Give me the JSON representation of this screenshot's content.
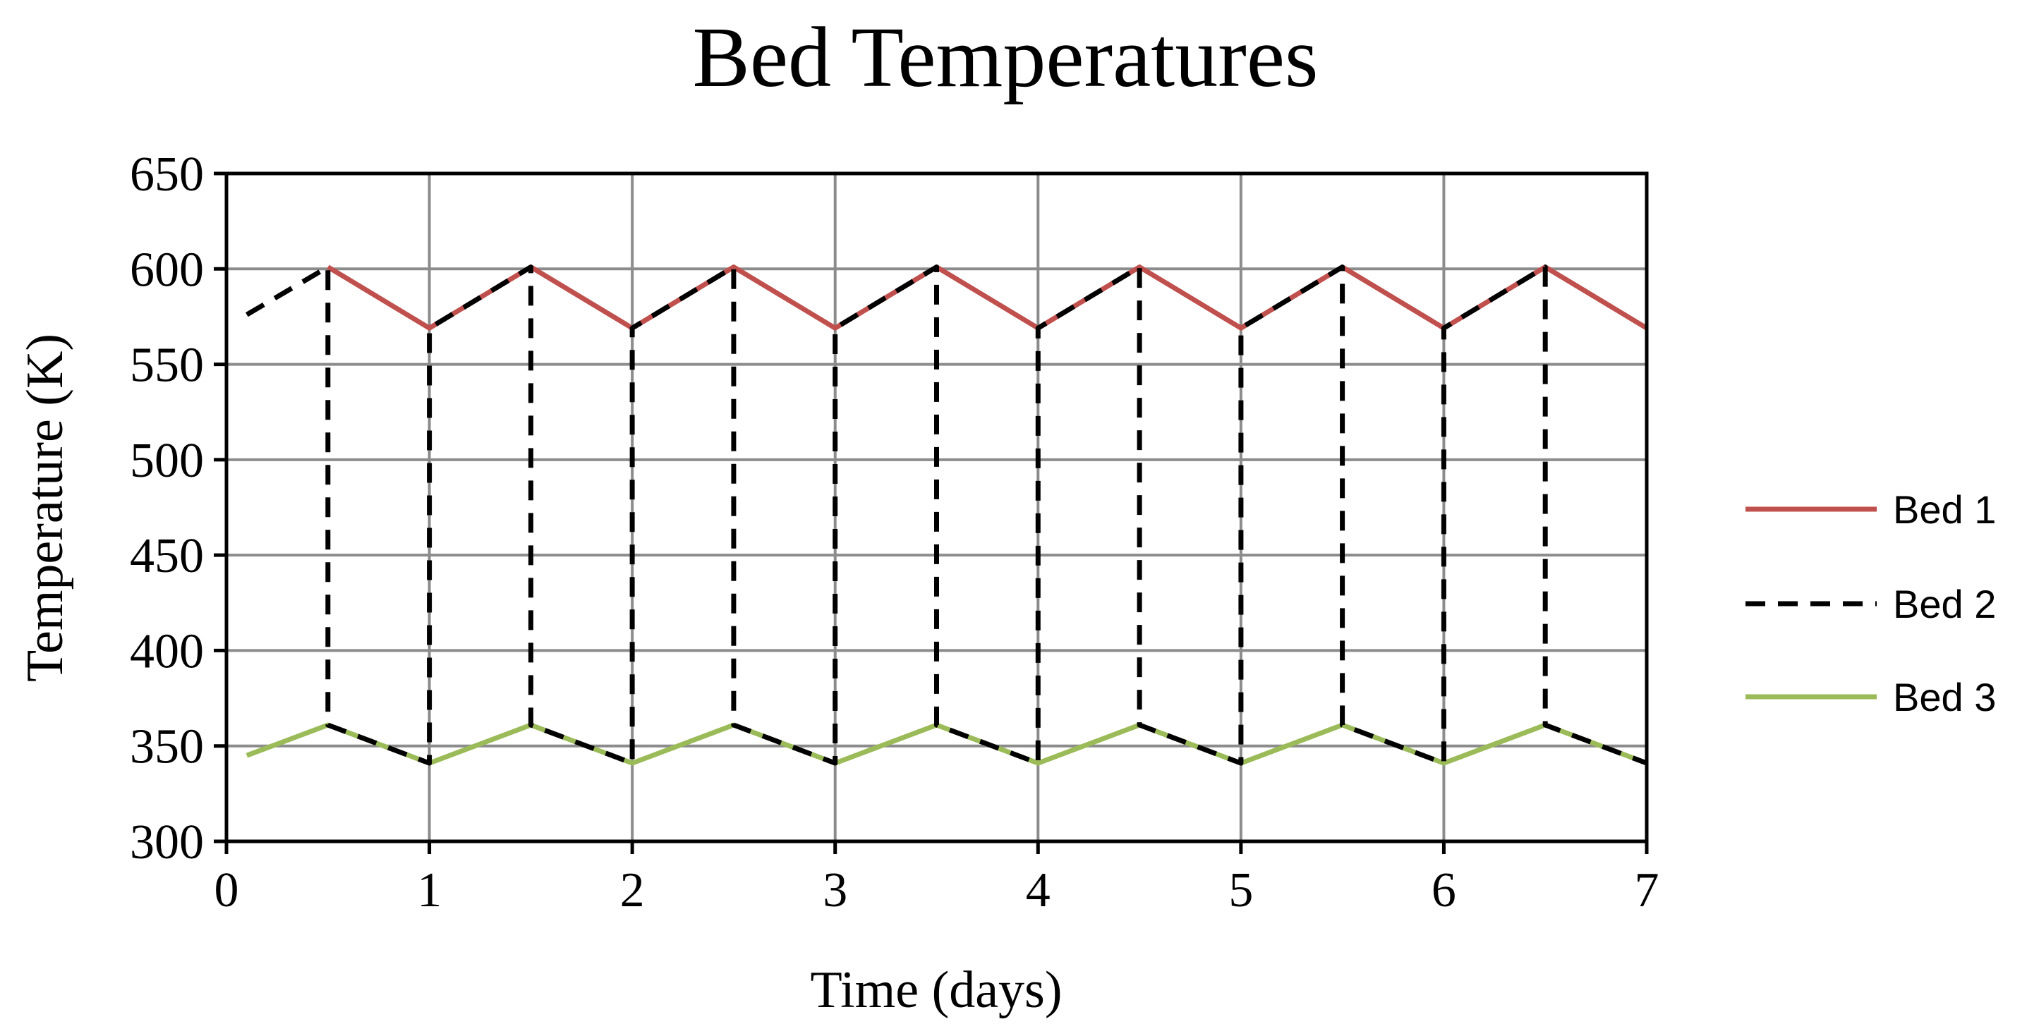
{
  "chart_data": {
    "type": "line",
    "title": "Bed Temperatures",
    "xlabel": "Time (days)",
    "ylabel": "Temperature (K)",
    "xlim": [
      0,
      7
    ],
    "ylim": [
      300,
      650
    ],
    "xticks": [
      0,
      1,
      2,
      3,
      4,
      5,
      6,
      7
    ],
    "yticks": [
      300,
      350,
      400,
      450,
      500,
      550,
      600,
      650
    ],
    "grid": true,
    "legend_position": "right",
    "series": [
      {
        "name": "Bed 1",
        "color": "#c0504d",
        "style": "solid",
        "x": [
          0.5,
          1,
          1.5,
          2,
          2.5,
          3,
          3.5,
          4,
          4.5,
          5,
          5.5,
          6,
          6.5,
          7
        ],
        "y": [
          601,
          569,
          601,
          569,
          601,
          569,
          601,
          569,
          601,
          569,
          601,
          569,
          601,
          569
        ]
      },
      {
        "name": "Bed 2",
        "color": "#000000",
        "style": "dashed",
        "x": [
          0.1,
          0.5,
          0.5,
          1,
          1,
          1.5,
          1.5,
          2,
          2,
          2.5,
          2.5,
          3,
          3,
          3.5,
          3.5,
          4,
          4,
          4.5,
          4.5,
          5,
          5,
          5.5,
          5.5,
          6,
          6,
          6.5,
          6.5,
          7
        ],
        "y": [
          576,
          601,
          361,
          341,
          569,
          601,
          361,
          341,
          569,
          601,
          361,
          341,
          569,
          601,
          361,
          341,
          569,
          601,
          361,
          341,
          569,
          601,
          361,
          341,
          569,
          601,
          361,
          341
        ]
      },
      {
        "name": "Bed 3",
        "color": "#9bbb59",
        "style": "solid",
        "x": [
          0.1,
          0.5,
          1,
          1.5,
          2,
          2.5,
          3,
          3.5,
          4,
          4.5,
          5,
          5.5,
          6,
          6.5,
          7
        ],
        "y": [
          345,
          361,
          341,
          361,
          341,
          361,
          341,
          361,
          341,
          361,
          341,
          361,
          341,
          361,
          341
        ]
      }
    ]
  }
}
